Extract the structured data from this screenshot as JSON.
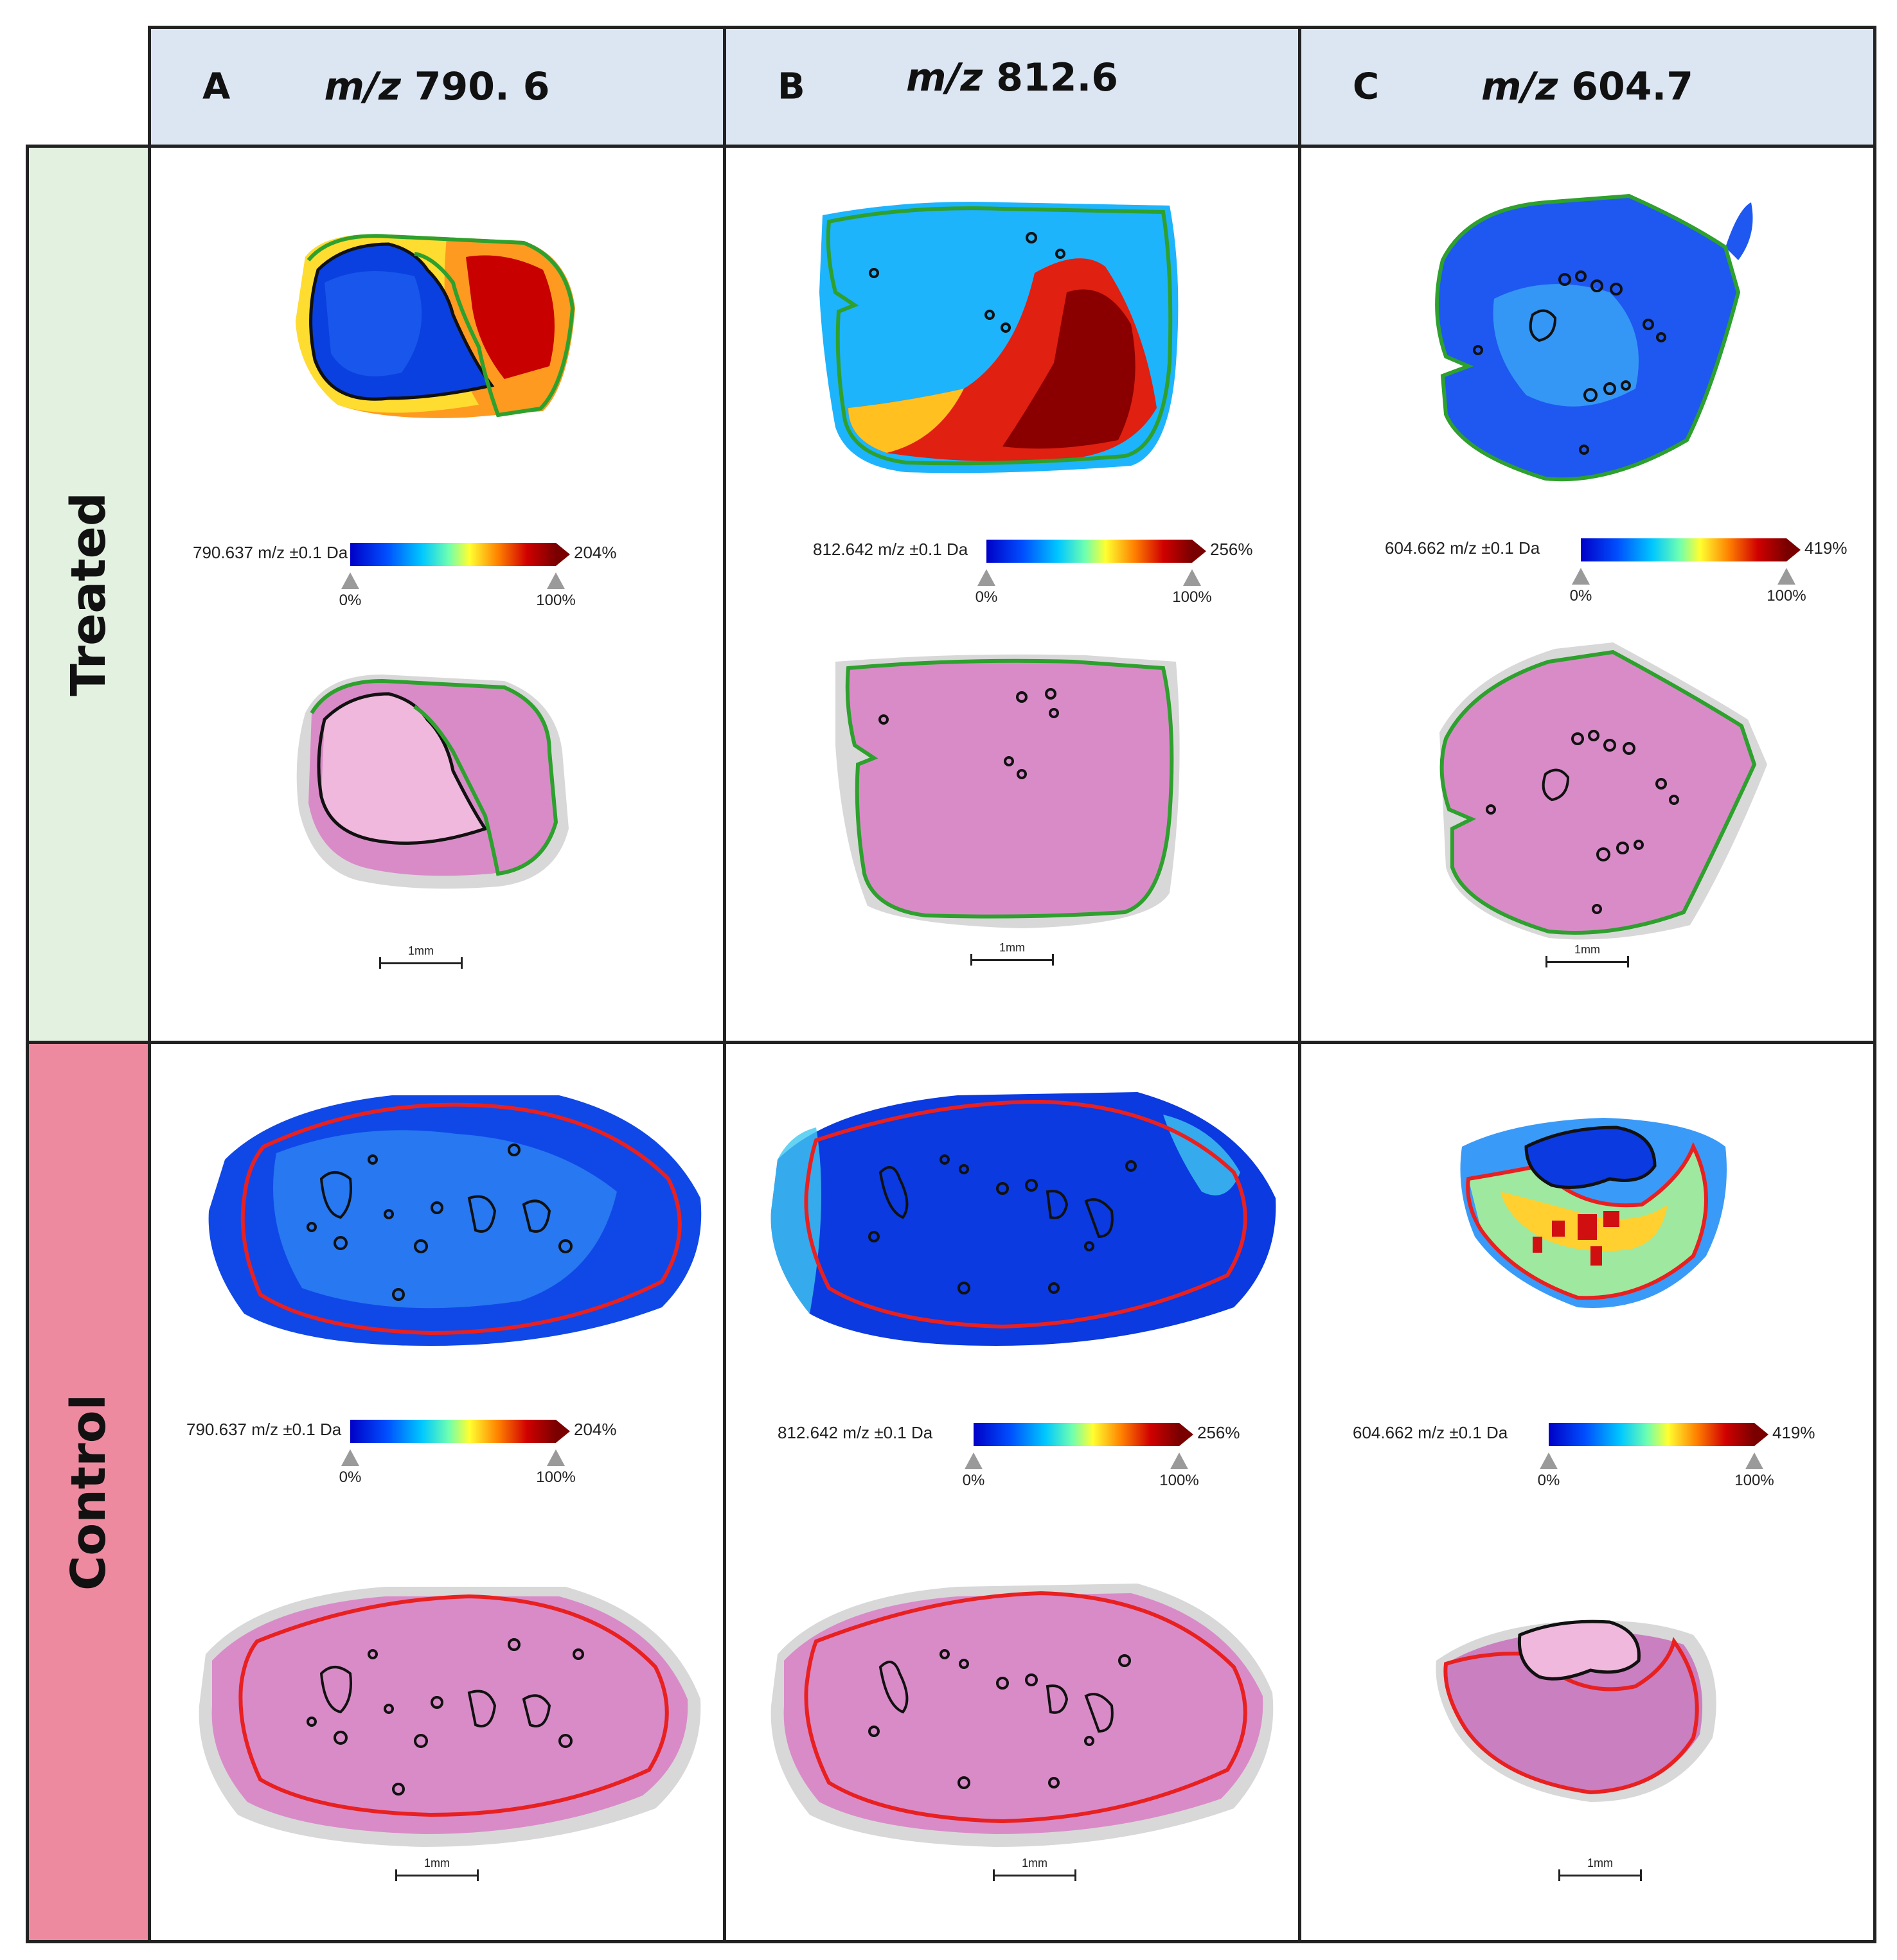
{
  "columns": [
    {
      "letter": "A",
      "mz_label": "m/z",
      "mz_value": "790. 6",
      "colorbar": {
        "label": "790.637 m/z ±0.1 Da",
        "max": "204%",
        "low": "0%",
        "high": "100%"
      }
    },
    {
      "letter": "B",
      "mz_label": "m/z",
      "mz_value": "812.6",
      "colorbar": {
        "label": "812.642 m/z ±0.1 Da",
        "max": "256%",
        "low": "0%",
        "high": "100%"
      }
    },
    {
      "letter": "C",
      "mz_label": "m/z",
      "mz_value": "604.7",
      "colorbar": {
        "label": "604.662 m/z ±0.1 Da",
        "max": "419%",
        "low": "0%",
        "high": "100%"
      }
    }
  ],
  "rows": [
    {
      "label": "Treated",
      "color": "#e3f1e0",
      "outline_color": "#2ea02e"
    },
    {
      "label": "Control",
      "color": "#ee8aa0",
      "outline_color": "#e82020"
    }
  ],
  "scale_bar": "1mm",
  "colors": {
    "header_bg": "#dce6f2",
    "tissue_he": "#d98bc8",
    "msi_low": "#0030e0",
    "msi_high": "#c00000"
  }
}
